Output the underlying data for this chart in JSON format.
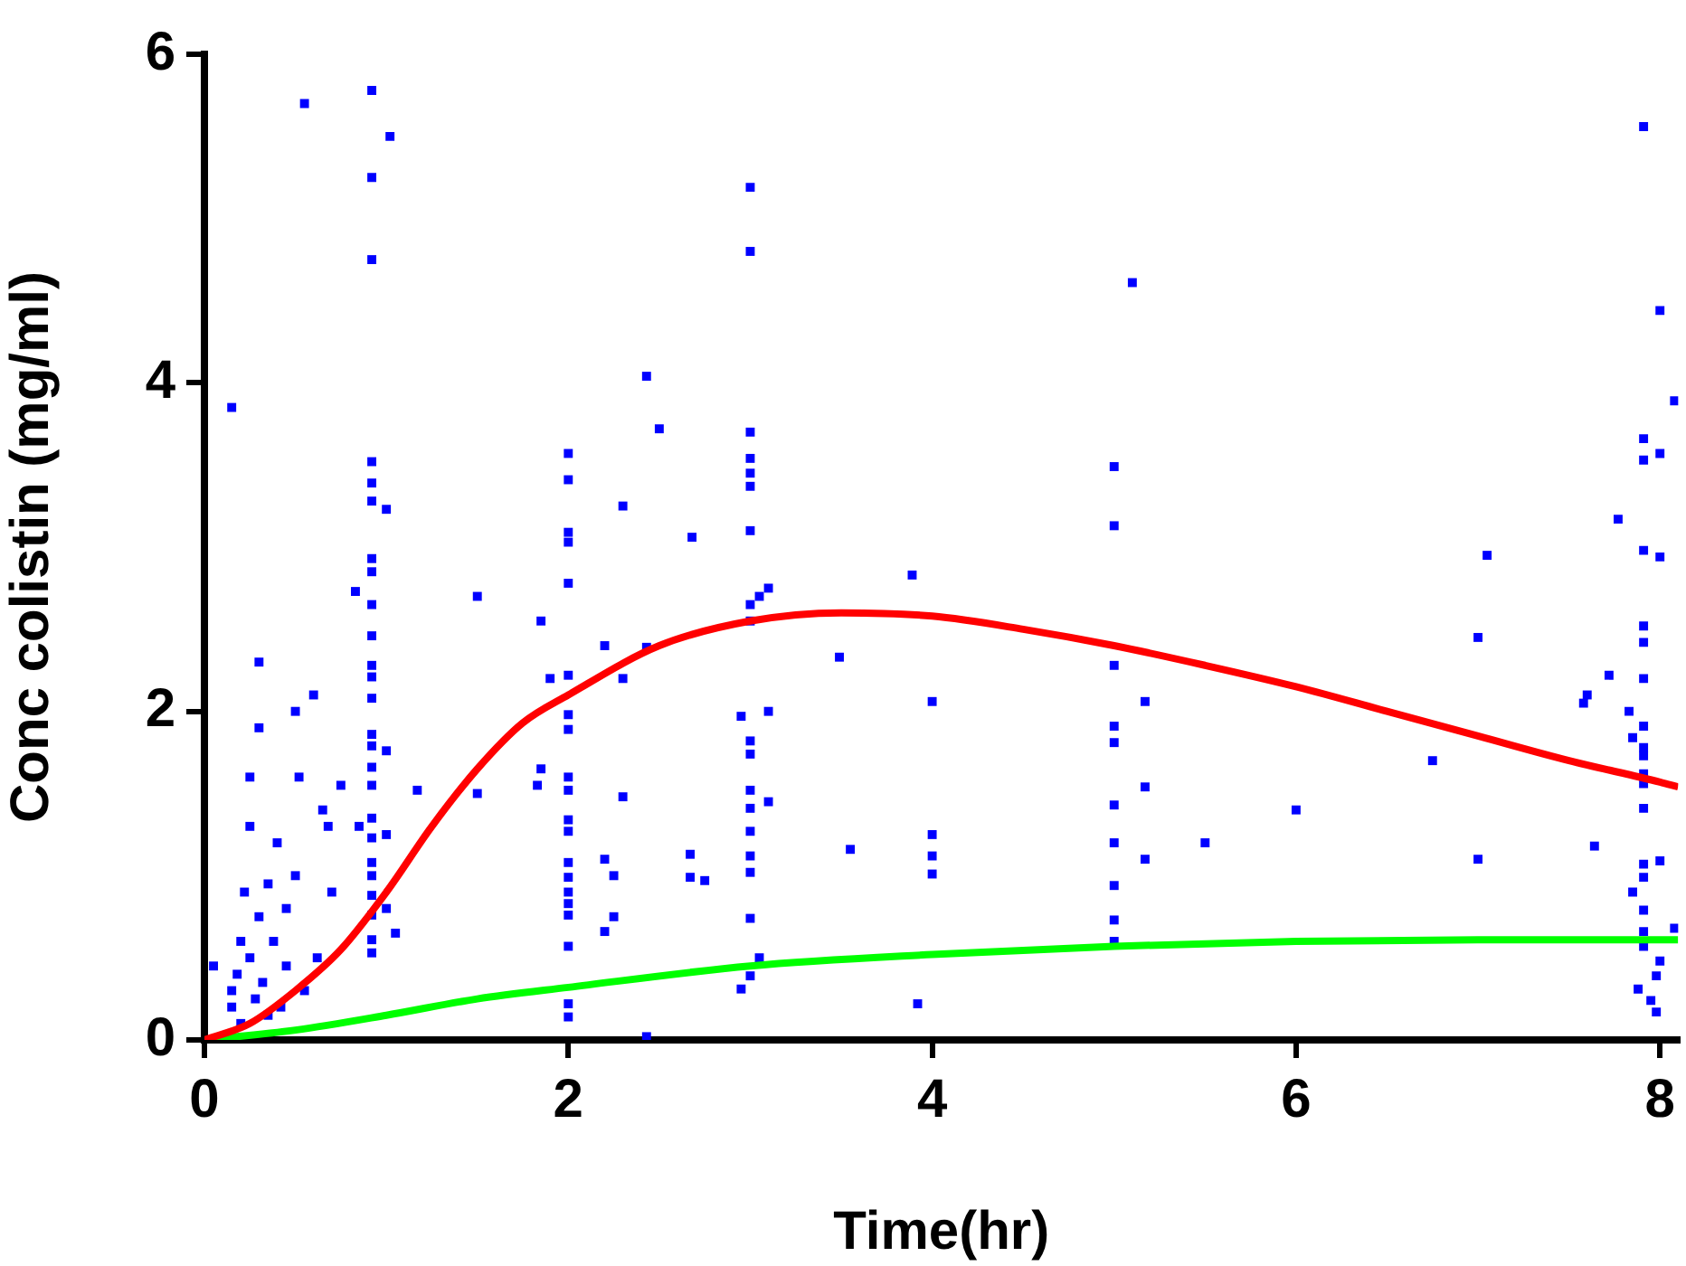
{
  "chart_data": {
    "type": "scatter",
    "xlabel": "Time(hr)",
    "ylabel": "Conc colistin (mg/ml)",
    "xlim": [
      0,
      8.1
    ],
    "ylim": [
      0,
      6
    ],
    "xticks": [
      0,
      2,
      4,
      6,
      8
    ],
    "yticks": [
      0,
      2,
      4,
      6
    ],
    "grid": false,
    "legend": false,
    "series": [
      {
        "type": "scatter",
        "color": "#0000ff",
        "marker": "square",
        "x": [
          0.15,
          0.05,
          0.15,
          0.15,
          0.18,
          0.2,
          0.2,
          0.22,
          0.25,
          0.25,
          0.25,
          0.28,
          0.3,
          0.3,
          0.3,
          0.32,
          0.35,
          0.35,
          0.38,
          0.4,
          0.42,
          0.45,
          0.45,
          0.5,
          0.5,
          0.52,
          0.55,
          0.55,
          0.6,
          0.62,
          0.65,
          0.68,
          0.7,
          0.75,
          0.92,
          0.92,
          0.92,
          0.92,
          0.92,
          0.92,
          0.92,
          0.92,
          0.92,
          0.92,
          0.92,
          0.92,
          0.92,
          0.92,
          0.92,
          0.92,
          0.92,
          0.92,
          0.92,
          0.92,
          0.92,
          0.92,
          0.92,
          0.92,
          0.92,
          1.02,
          0.83,
          1.0,
          1.0,
          1.0,
          1.0,
          1.05,
          0.85,
          1.17,
          1.5,
          1.5,
          1.85,
          1.9,
          1.85,
          1.83,
          2.0,
          2.0,
          2.0,
          2.0,
          2.0,
          2.0,
          2.0,
          2.0,
          2.0,
          2.0,
          2.0,
          2.0,
          2.0,
          2.0,
          2.0,
          2.0,
          2.0,
          2.0,
          2.0,
          2.0,
          2.2,
          2.2,
          2.25,
          2.25,
          2.3,
          2.3,
          2.2,
          2.3,
          2.43,
          2.43,
          2.43,
          2.5,
          2.67,
          2.67,
          2.75,
          2.68,
          3.0,
          3.0,
          3.0,
          3.0,
          3.0,
          3.0,
          3.0,
          3.0,
          3.0,
          2.95,
          3.0,
          3.0,
          3.0,
          3.0,
          3.0,
          3.0,
          3.0,
          3.0,
          3.0,
          2.95,
          3.1,
          3.05,
          3.1,
          3.1,
          3.05,
          3.49,
          3.55,
          3.89,
          4.0,
          4.0,
          4.0,
          4.0,
          3.92,
          5.0,
          5.0,
          5.0,
          5.0,
          5.0,
          5.0,
          5.0,
          5.0,
          5.0,
          5.0,
          5.17,
          5.17,
          5.17,
          5.1,
          5.5,
          6.0,
          6.75,
          7.0,
          7.0,
          7.05,
          7.6,
          7.91,
          8.0,
          8.08,
          7.91,
          8.0,
          7.91,
          7.77,
          7.91,
          8.0,
          7.91,
          7.91,
          7.72,
          7.91,
          7.58,
          7.83,
          7.91,
          7.85,
          7.91,
          7.91,
          7.91,
          7.91,
          7.91,
          7.64,
          8.0,
          7.91,
          7.91,
          7.85,
          7.91,
          8.08,
          7.91,
          7.91,
          8.0,
          7.98,
          7.88,
          7.95,
          7.98
        ],
        "values": [
          3.85,
          0.45,
          0.3,
          0.2,
          0.4,
          0.1,
          0.6,
          0.9,
          1.3,
          1.6,
          0.5,
          0.25,
          0.75,
          1.9,
          2.3,
          0.35,
          0.95,
          0.15,
          0.6,
          1.2,
          0.2,
          0.45,
          0.8,
          1.0,
          2.0,
          1.6,
          0.3,
          5.7,
          2.1,
          0.5,
          1.4,
          1.3,
          0.9,
          1.55,
          5.78,
          5.25,
          4.75,
          3.52,
          3.39,
          3.28,
          2.93,
          2.85,
          2.65,
          2.46,
          2.28,
          2.21,
          2.08,
          1.86,
          1.79,
          1.66,
          1.55,
          1.35,
          1.23,
          1.08,
          1.0,
          0.88,
          0.76,
          0.61,
          0.53,
          5.5,
          2.73,
          3.23,
          1.76,
          1.25,
          0.8,
          0.65,
          1.3,
          1.52,
          2.7,
          1.5,
          2.55,
          2.2,
          1.65,
          1.55,
          3.57,
          3.41,
          3.09,
          3.03,
          2.78,
          2.22,
          1.98,
          1.89,
          1.6,
          1.52,
          1.34,
          1.27,
          1.08,
          0.99,
          0.9,
          0.83,
          0.76,
          0.57,
          0.22,
          0.14,
          1.1,
          0.66,
          0.75,
          1.0,
          1.48,
          2.2,
          2.4,
          3.25,
          4.04,
          0.02,
          2.39,
          3.72,
          1.13,
          0.99,
          0.97,
          3.06,
          5.19,
          4.8,
          3.7,
          3.54,
          3.45,
          3.37,
          3.1,
          2.65,
          2.55,
          1.97,
          1.82,
          1.74,
          1.52,
          1.41,
          1.27,
          1.12,
          1.02,
          0.74,
          0.39,
          0.31,
          2.75,
          2.7,
          2.0,
          1.45,
          0.5,
          2.33,
          1.16,
          2.83,
          2.06,
          1.25,
          1.12,
          1.01,
          0.22,
          3.49,
          3.13,
          2.28,
          1.91,
          1.81,
          1.43,
          1.2,
          0.94,
          0.73,
          0.6,
          2.06,
          1.54,
          1.1,
          4.61,
          1.2,
          1.4,
          1.7,
          2.45,
          1.1,
          2.95,
          2.1,
          5.56,
          4.44,
          3.89,
          3.66,
          3.57,
          3.53,
          3.17,
          2.98,
          2.94,
          2.52,
          2.42,
          2.22,
          2.2,
          2.05,
          2.0,
          1.91,
          1.84,
          1.78,
          1.73,
          1.62,
          1.56,
          1.41,
          1.18,
          1.09,
          1.07,
          0.99,
          0.9,
          0.79,
          0.68,
          0.66,
          0.57,
          0.48,
          0.39,
          0.31,
          0.24,
          0.17
        ]
      },
      {
        "type": "line",
        "color": "#ff0000",
        "marker": "none",
        "x": [
          0,
          0.25,
          0.5,
          0.75,
          1.0,
          1.25,
          1.5,
          1.75,
          2.0,
          2.5,
          3.0,
          3.5,
          4.0,
          4.5,
          5.0,
          5.5,
          6.0,
          6.5,
          7.0,
          7.5,
          8.0,
          8.1
        ],
        "values": [
          0,
          0.1,
          0.3,
          0.55,
          0.9,
          1.3,
          1.65,
          1.93,
          2.1,
          2.4,
          2.55,
          2.6,
          2.58,
          2.5,
          2.4,
          2.28,
          2.15,
          2.0,
          1.85,
          1.7,
          1.57,
          1.54
        ]
      },
      {
        "type": "line",
        "color": "#00ff00",
        "marker": "none",
        "x": [
          0,
          0.5,
          1.0,
          1.5,
          2.0,
          3.0,
          4.0,
          5.0,
          6.0,
          7.0,
          8.0,
          8.1
        ],
        "values": [
          0,
          0.06,
          0.15,
          0.25,
          0.32,
          0.45,
          0.52,
          0.57,
          0.6,
          0.61,
          0.61,
          0.61
        ]
      }
    ]
  }
}
